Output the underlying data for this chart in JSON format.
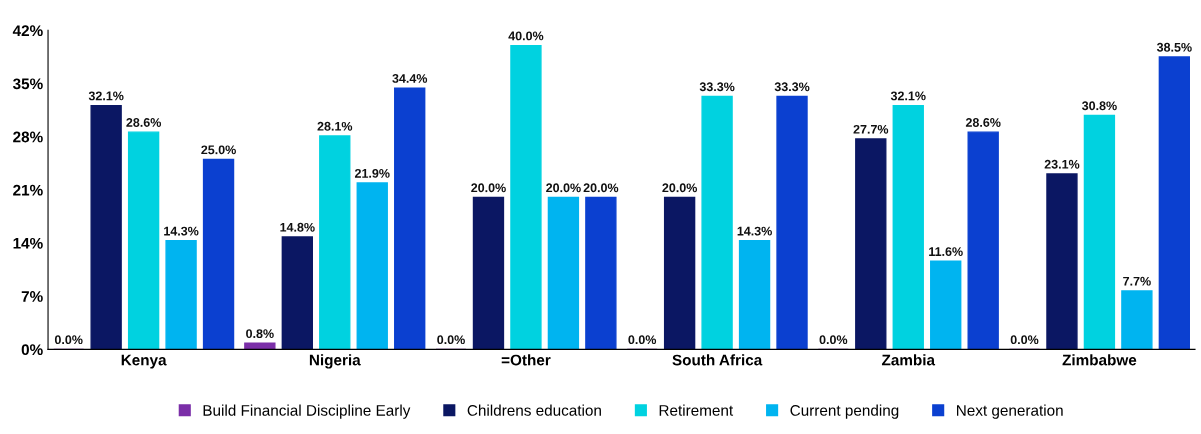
{
  "chart_data": {
    "type": "bar",
    "categories": [
      "Kenya",
      "Nigeria",
      "=Other",
      "South Africa",
      "Zambia",
      "Zimbabwe"
    ],
    "series": [
      {
        "name": "Build Financial Discipline Early",
        "color": "#7b2fa8",
        "values": [
          0.0,
          0.8,
          0.0,
          0.0,
          0.0,
          0.0
        ],
        "value_labels": [
          "0.0%",
          "0.8%",
          "0.0%",
          "0.0%",
          "0.0%",
          "0.0%"
        ]
      },
      {
        "name": "Childrens education",
        "color": "#0b1763",
        "values": [
          32.1,
          14.8,
          20.0,
          20.0,
          27.7,
          23.1
        ],
        "value_labels": [
          "32.1%",
          "14.8%",
          "20.0%",
          "20.0%",
          "27.7%",
          "23.1%"
        ]
      },
      {
        "name": "Retirement",
        "color": "#00d2e0",
        "values": [
          28.6,
          28.1,
          40.0,
          33.3,
          32.1,
          30.8
        ],
        "value_labels": [
          "28.6%",
          "28.1%",
          "40.0%",
          "33.3%",
          "32.1%",
          "30.8%"
        ]
      },
      {
        "name": "Current pending",
        "color": "#00b4f0",
        "values": [
          14.3,
          21.9,
          20.0,
          14.3,
          11.6,
          7.7
        ],
        "value_labels": [
          "14.3%",
          "21.9%",
          "20.0%",
          "14.3%",
          "11.6%",
          "7.7%"
        ]
      },
      {
        "name": "Next generation",
        "color": "#0b40d0",
        "values": [
          25.0,
          34.4,
          20.0,
          33.3,
          28.6,
          38.5
        ],
        "value_labels": [
          "25.0%",
          "34.4%",
          "20.0%",
          "33.3%",
          "28.6%",
          "38.5%"
        ]
      }
    ],
    "ylim": [
      0,
      42
    ],
    "yticks": [
      {
        "value": 0,
        "label": "0%"
      },
      {
        "value": 7,
        "label": "7%"
      },
      {
        "value": 14,
        "label": "14%"
      },
      {
        "value": 21,
        "label": "21%"
      },
      {
        "value": 28,
        "label": "28%"
      },
      {
        "value": 35,
        "label": "35%"
      },
      {
        "value": 42,
        "label": "42%"
      }
    ],
    "grid": false,
    "legend": "bottom"
  }
}
